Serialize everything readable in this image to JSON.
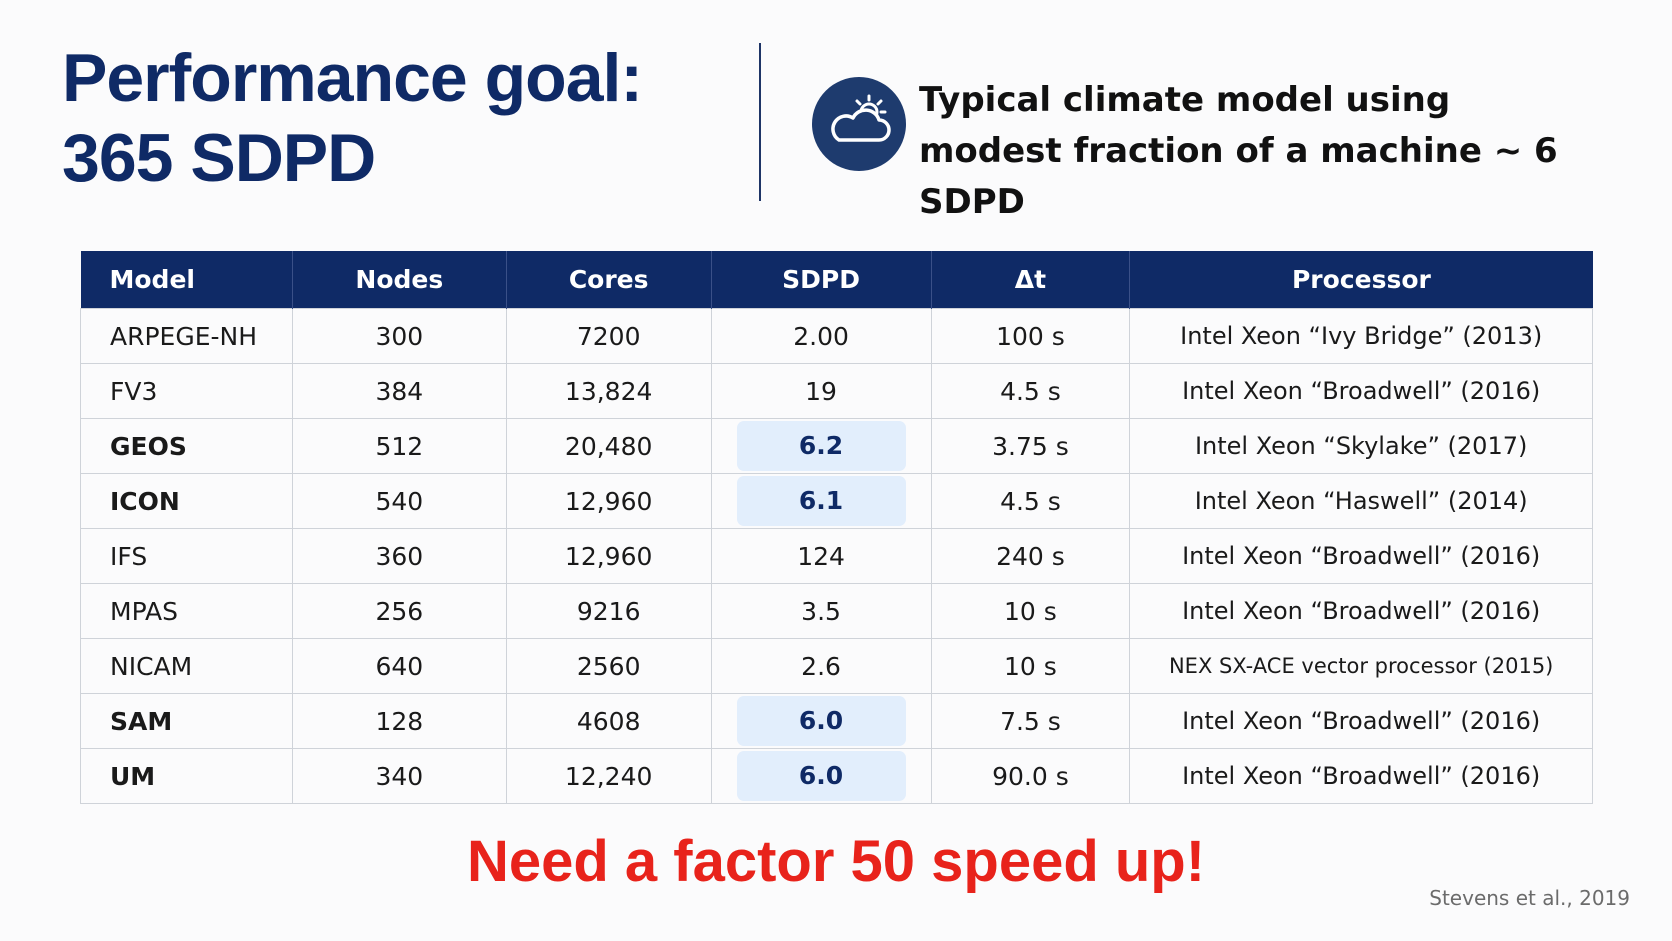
{
  "title": [
    "Performance goal:",
    "365 SDPD"
  ],
  "subtitle": [
    "Typical climate model using",
    "modest fraction of a machine ~ 6 SDPD"
  ],
  "table": {
    "header": [
      "Model",
      "Nodes",
      "Cores",
      "SDPD",
      "Δt",
      "Processor"
    ],
    "rows": [
      {
        "cells": [
          "ARPEGE-NH",
          "300",
          "7200",
          "2.00",
          "100 s",
          "Intel Xeon “Ivy Bridge” (2013)"
        ],
        "highlight": false
      },
      {
        "cells": [
          "FV3",
          "384",
          "13,824",
          "19",
          "4.5 s",
          "Intel Xeon “Broadwell” (2016)"
        ],
        "highlight": false
      },
      {
        "cells": [
          "GEOS",
          "512",
          "20,480",
          "6.2",
          "3.75 s",
          "Intel Xeon “Skylake” (2017)"
        ],
        "highlight": true
      },
      {
        "cells": [
          "ICON",
          "540",
          "12,960",
          "6.1",
          "4.5 s",
          "Intel Xeon “Haswell” (2014)"
        ],
        "highlight": true
      },
      {
        "cells": [
          "IFS",
          "360",
          "12,960",
          "124",
          "240 s",
          "Intel Xeon “Broadwell” (2016)"
        ],
        "highlight": false
      },
      {
        "cells": [
          "MPAS",
          "256",
          "9216",
          "3.5",
          "10 s",
          "Intel Xeon “Broadwell” (2016)"
        ],
        "highlight": false
      },
      {
        "cells": [
          "NICAM",
          "640",
          "2560",
          "2.6",
          "10 s",
          "NEX SX-ACE vector processor (2015)"
        ],
        "highlight": false
      },
      {
        "cells": [
          "SAM",
          "128",
          "4608",
          "6.0",
          "7.5 s",
          "Intel Xeon “Broadwell” (2016)"
        ],
        "highlight": true
      },
      {
        "cells": [
          "UM",
          "340",
          "12,240",
          "6.0",
          "90.0 s",
          "Intel Xeon “Broadwell” (2016)"
        ],
        "highlight": true
      }
    ]
  },
  "callout": "Need a factor 50 speed up!",
  "citation": "Stevens et al., 2019"
}
